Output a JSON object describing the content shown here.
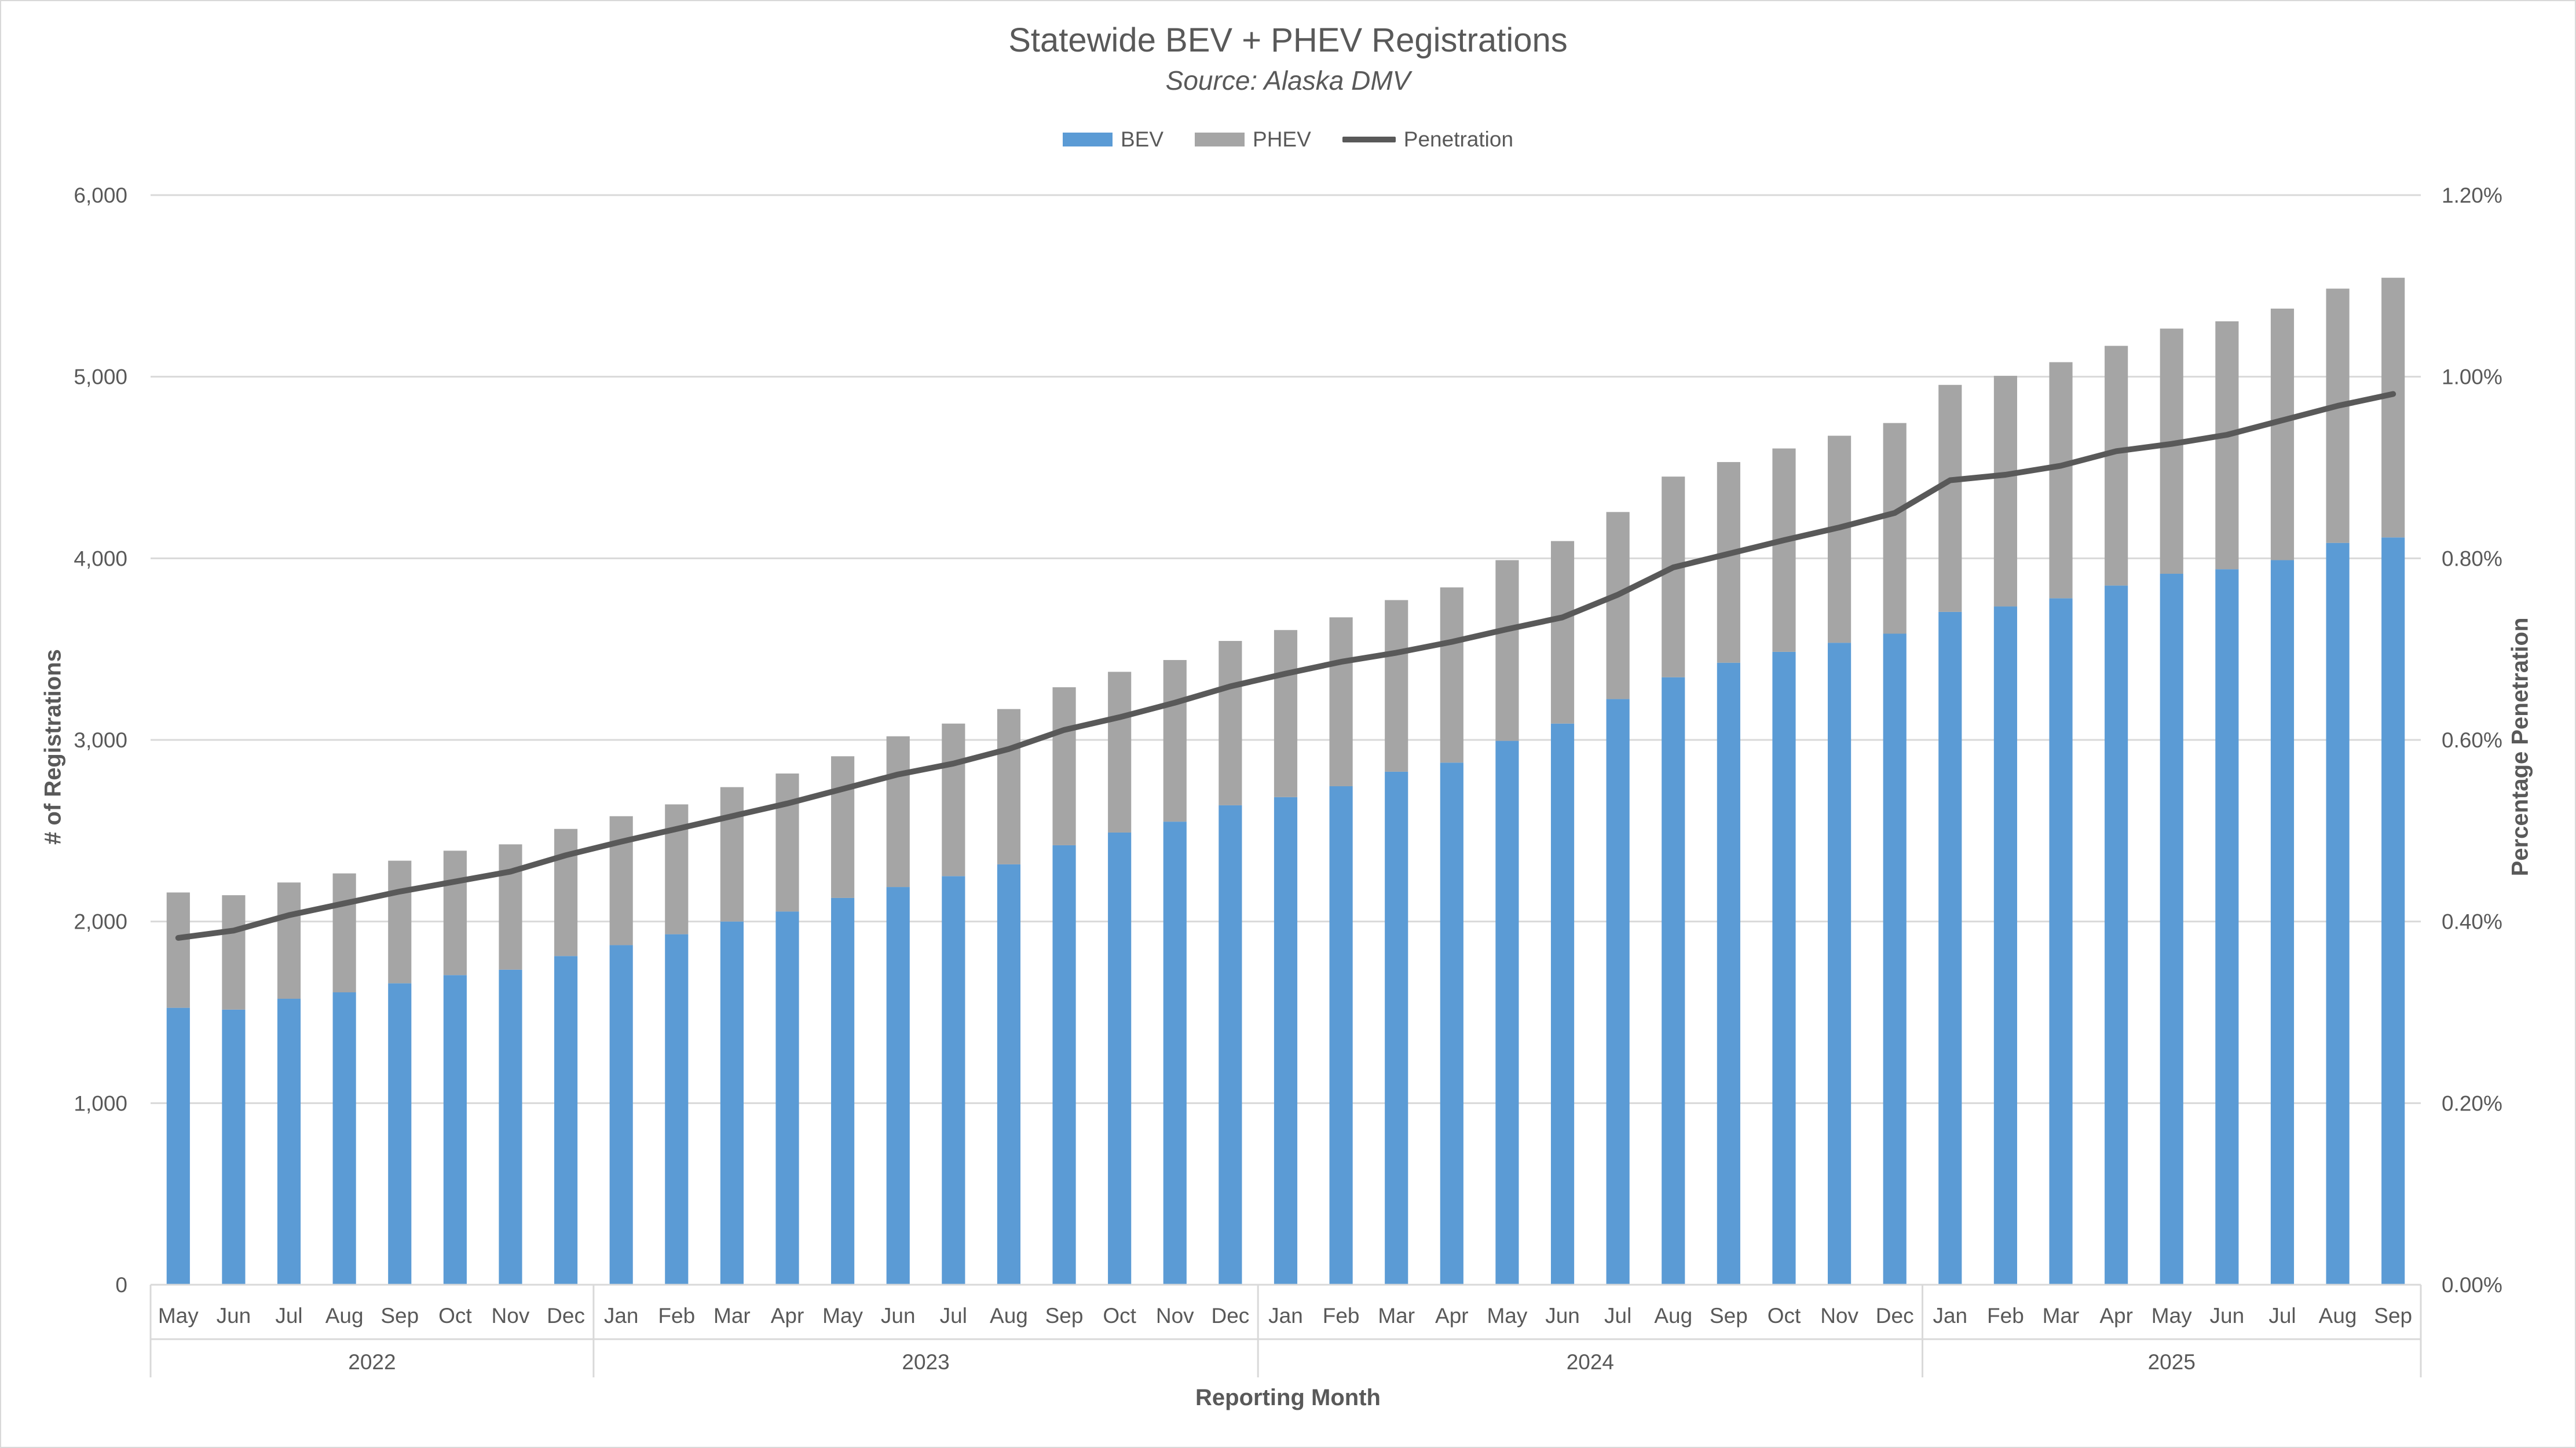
{
  "chart_data": {
    "type": "bar",
    "stacked": true,
    "title": "Statewide BEV + PHEV Registrations",
    "subtitle": "Source: Alaska DMV",
    "xlabel": "Reporting Month",
    "ylabel": "# of Registrations",
    "y2label": "Percentage Penetration",
    "ylim": [
      0,
      6000
    ],
    "y_ticks": [
      "0",
      "1,000",
      "2,000",
      "3,000",
      "4,000",
      "5,000",
      "6,000"
    ],
    "y2lim": [
      0,
      1.2
    ],
    "y2_ticks": [
      "0.00%",
      "0.20%",
      "0.40%",
      "0.60%",
      "0.80%",
      "1.00%",
      "1.20%"
    ],
    "grid": true,
    "legend_position": "top",
    "categories": [
      "May",
      "Jun",
      "Jul",
      "Aug",
      "Sep",
      "Oct",
      "Nov",
      "Dec",
      "Jan",
      "Feb",
      "Mar",
      "Apr",
      "May",
      "Jun",
      "Jul",
      "Aug",
      "Sep",
      "Oct",
      "Nov",
      "Dec",
      "Jan",
      "Feb",
      "Mar",
      "Apr",
      "May",
      "Jun",
      "Jul",
      "Aug",
      "Sep",
      "Oct",
      "Nov",
      "Dec",
      "Jan",
      "Feb",
      "Mar",
      "Apr",
      "May",
      "Jun",
      "Jul",
      "Aug",
      "Sep"
    ],
    "year_groups": [
      {
        "label": "2022",
        "count": 8
      },
      {
        "label": "2023",
        "count": 12
      },
      {
        "label": "2024",
        "count": 12
      },
      {
        "label": "2025",
        "count": 9
      }
    ],
    "series": [
      {
        "name": "BEV",
        "kind": "bar",
        "color": "#5b9bd5",
        "values": [
          1525,
          1515,
          1575,
          1610,
          1660,
          1705,
          1735,
          1810,
          1870,
          1930,
          2000,
          2055,
          2130,
          2190,
          2250,
          2315,
          2420,
          2490,
          2550,
          2640,
          2685,
          2745,
          2825,
          2875,
          2995,
          3090,
          3225,
          3345,
          3425,
          3485,
          3535,
          3585,
          3705,
          3735,
          3780,
          3850,
          3915,
          3940,
          3990,
          4085,
          4115
        ]
      },
      {
        "name": "PHEV",
        "kind": "bar",
        "color": "#a5a5a5",
        "values": [
          635,
          630,
          640,
          655,
          675,
          685,
          690,
          700,
          710,
          715,
          740,
          760,
          780,
          830,
          840,
          855,
          870,
          885,
          890,
          905,
          920,
          930,
          945,
          965,
          995,
          1005,
          1030,
          1105,
          1105,
          1120,
          1140,
          1160,
          1250,
          1270,
          1300,
          1320,
          1350,
          1365,
          1385,
          1400,
          1430
        ]
      },
      {
        "name": "Penetration",
        "kind": "line",
        "axis": "y2",
        "color": "#595959",
        "values": [
          0.382,
          0.39,
          0.407,
          0.42,
          0.433,
          0.444,
          0.455,
          0.473,
          0.488,
          0.502,
          0.516,
          0.53,
          0.546,
          0.562,
          0.574,
          0.59,
          0.611,
          0.625,
          0.641,
          0.659,
          0.673,
          0.686,
          0.696,
          0.708,
          0.722,
          0.735,
          0.76,
          0.79,
          0.805,
          0.82,
          0.834,
          0.85,
          0.886,
          0.892,
          0.902,
          0.918,
          0.926,
          0.936,
          0.952,
          0.968,
          0.981
        ]
      }
    ]
  }
}
